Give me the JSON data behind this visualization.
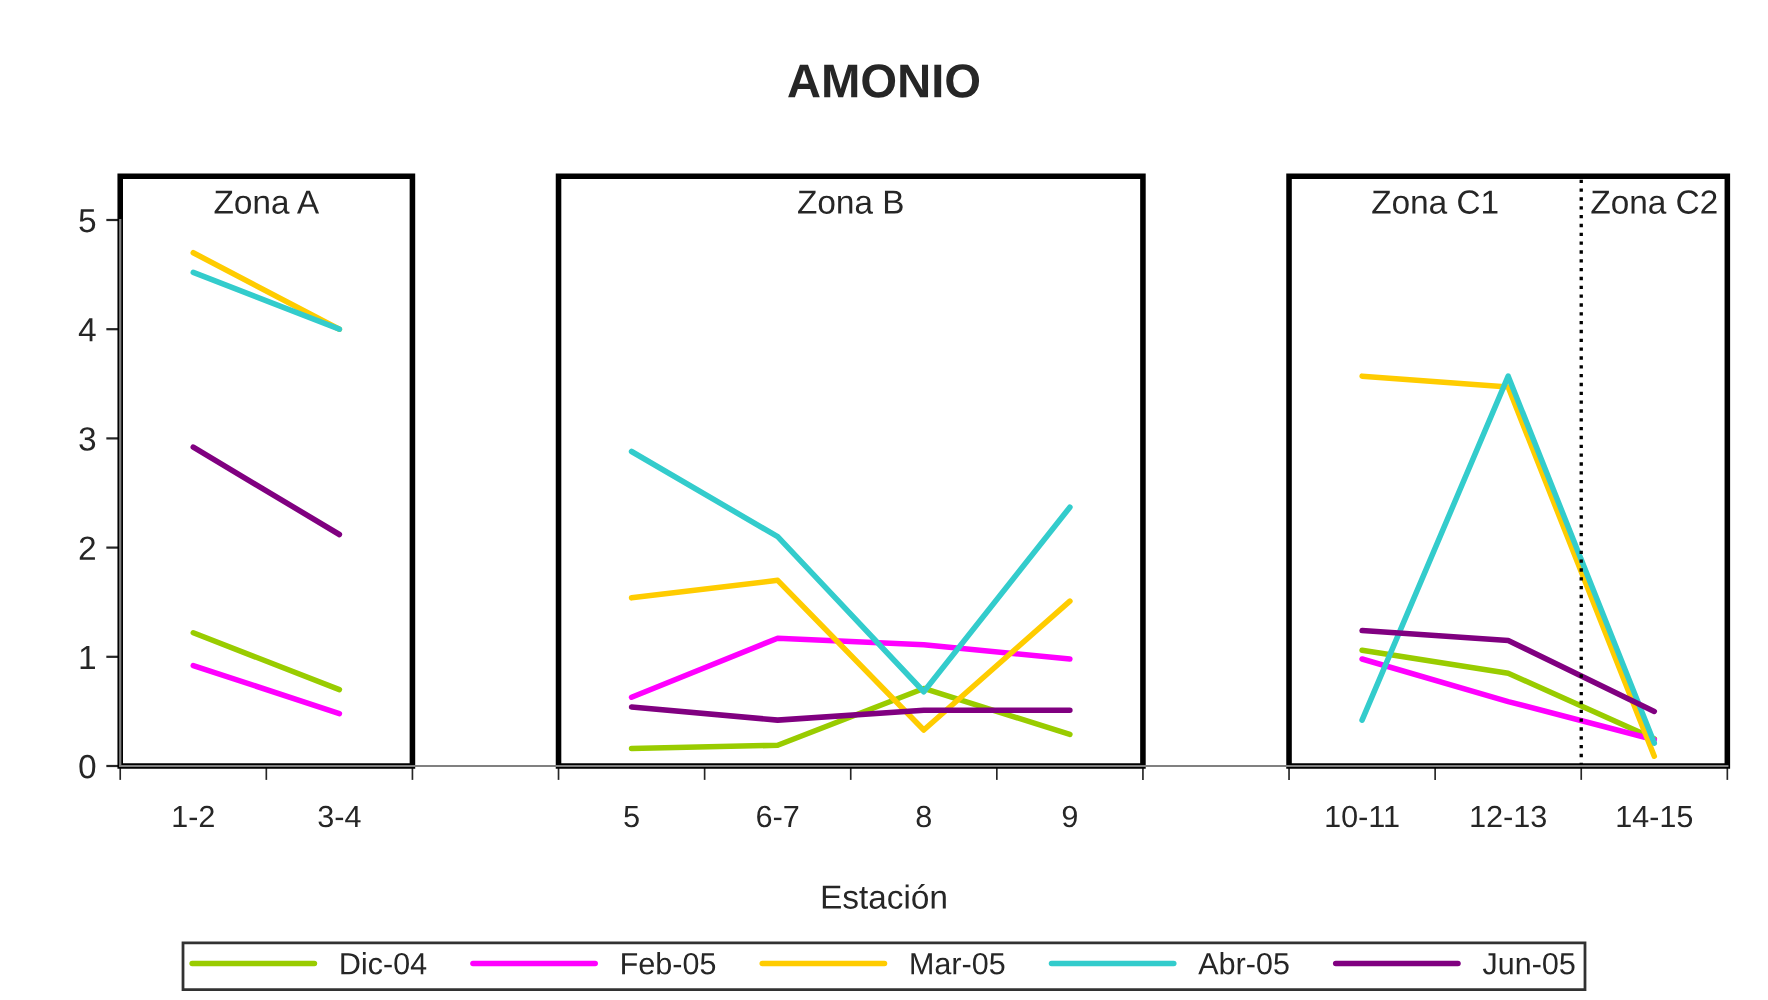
{
  "chart_data": {
    "type": "line",
    "title": "AMONIO",
    "xlabel": "Estación",
    "categories": [
      "1-2",
      "3-4",
      null,
      "5",
      "6-7",
      "8",
      "9",
      null,
      "10-11",
      "12-13",
      "14-15"
    ],
    "series": [
      {
        "name": "Dic-04",
        "color": "#99cc00",
        "values": [
          1.22,
          0.7,
          null,
          0.16,
          0.19,
          0.71,
          0.29,
          null,
          1.06,
          0.85,
          0.25
        ]
      },
      {
        "name": "Feb-05",
        "color": "#ff00ff",
        "values": [
          0.92,
          0.48,
          null,
          0.63,
          1.17,
          1.11,
          0.98,
          null,
          0.98,
          0.59,
          0.24
        ]
      },
      {
        "name": "Mar-05",
        "color": "#ffcc00",
        "values": [
          4.7,
          4.0,
          null,
          1.54,
          1.7,
          0.33,
          1.51,
          null,
          3.57,
          3.47,
          0.09
        ]
      },
      {
        "name": "Abr-05",
        "color": "#33cccc",
        "values": [
          4.52,
          4.0,
          null,
          2.88,
          2.1,
          0.68,
          2.37,
          null,
          0.42,
          3.57,
          0.21
        ]
      },
      {
        "name": "Jun-05",
        "color": "#800080",
        "values": [
          2.92,
          2.12,
          null,
          0.54,
          0.42,
          0.51,
          0.51,
          null,
          1.24,
          1.15,
          0.5
        ]
      }
    ],
    "annotations": [
      "Zona A",
      "Zona B",
      "Zona C1",
      "Zona C2"
    ],
    "ylim": [
      0,
      5
    ],
    "yticks": [
      0,
      1,
      2,
      3,
      4,
      5
    ],
    "legend": "bottom",
    "marker": "none",
    "line_style": "solid"
  }
}
